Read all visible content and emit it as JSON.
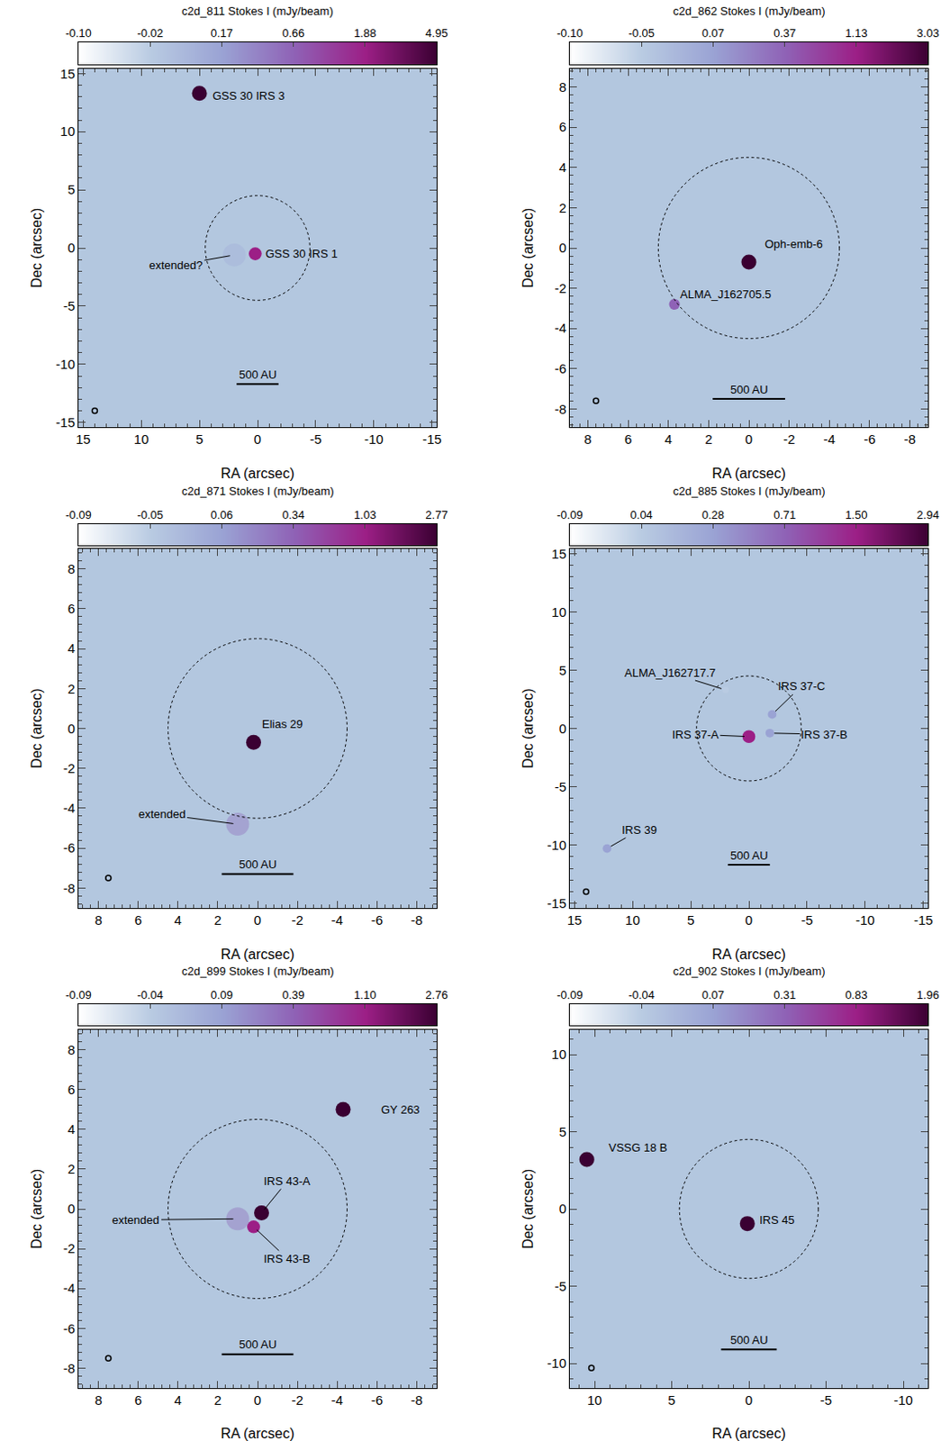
{
  "chart_data": [
    {
      "type": "image",
      "title": "c2d_811 Stokes I (mJy/beam)",
      "x_label": "RA (arcsec)",
      "y_label": "Dec (arcsec)",
      "xlim": [
        15.4,
        -15.4
      ],
      "ylim": [
        -15.4,
        15.4
      ],
      "xticks": [
        15,
        10,
        5,
        0,
        -5,
        -10,
        -15
      ],
      "yticks": [
        -15,
        -10,
        -5,
        0,
        5,
        10,
        15
      ],
      "colorbar_ticks": [
        {
          "value": -0.1,
          "label": "-0.10"
        },
        {
          "value": -0.02,
          "label": "-0.02"
        },
        {
          "value": 0.17,
          "label": "0.17"
        },
        {
          "value": 0.66,
          "label": "0.66"
        },
        {
          "value": 1.88,
          "label": "1.88"
        },
        {
          "value": 4.95,
          "label": "4.95"
        }
      ],
      "sources": [
        {
          "name": "GSS 30 IRS 3",
          "x": 5.0,
          "y": 13.3,
          "peak": 4.95,
          "label_at": [
            4.0,
            13.1
          ]
        },
        {
          "name": "GSS 30 IRS 1",
          "x": 0.2,
          "y": -0.5,
          "peak": 1.88,
          "label_at": [
            -0.5,
            -0.5
          ]
        },
        {
          "name": "extended?",
          "x": 2.0,
          "y": -0.6,
          "peak": 0.1,
          "marker": "diffuse",
          "label_at": [
            7.0,
            -1.5
          ],
          "line_style": "solid"
        }
      ],
      "circle_radius": 4.5,
      "scale_bar": {
        "label": "500 AU",
        "length": 3.6,
        "y": -11.7
      },
      "beam": [
        14,
        -14
      ]
    },
    {
      "type": "image",
      "title": "c2d_862 Stokes I (mJy/beam)",
      "x_label": "RA (arcsec)",
      "y_label": "Dec (arcsec)",
      "xlim": [
        8.9,
        -8.9
      ],
      "ylim": [
        -8.9,
        8.9
      ],
      "xticks": [
        8,
        6,
        4,
        2,
        0,
        -2,
        -4,
        -6,
        -8
      ],
      "yticks": [
        -8,
        -6,
        -4,
        -2,
        0,
        2,
        4,
        6,
        8
      ],
      "colorbar_ticks": [
        {
          "value": -0.1,
          "label": "-0.10"
        },
        {
          "value": -0.05,
          "label": "-0.05"
        },
        {
          "value": 0.07,
          "label": "0.07"
        },
        {
          "value": 0.37,
          "label": "0.37"
        },
        {
          "value": 1.13,
          "label": "1.13"
        },
        {
          "value": 3.03,
          "label": "3.03"
        }
      ],
      "sources": [
        {
          "name": "Oph-emb-6",
          "x": 0.0,
          "y": -0.7,
          "peak": 3.03,
          "label_at": [
            -0.7,
            0.2
          ]
        },
        {
          "name": "ALMA_J162705.5",
          "x": 3.7,
          "y": -2.8,
          "peak": 0.37,
          "label_at": [
            3.5,
            -2.3
          ]
        }
      ],
      "circle_radius": 4.5,
      "scale_bar": {
        "label": "500 AU",
        "length": 3.6,
        "y": -7.5
      },
      "beam": [
        7.6,
        -7.6
      ]
    },
    {
      "type": "image",
      "title": "c2d_871 Stokes I (mJy/beam)",
      "x_label": "RA (arcsec)",
      "y_label": "Dec (arcsec)",
      "xlim": [
        9.0,
        -9.0
      ],
      "ylim": [
        -9.0,
        9.0
      ],
      "xticks": [
        8,
        6,
        4,
        2,
        0,
        -2,
        -4,
        -6,
        -8
      ],
      "yticks": [
        -8,
        -6,
        -4,
        -2,
        0,
        2,
        4,
        6,
        8
      ],
      "colorbar_ticks": [
        {
          "value": -0.09,
          "label": "-0.09"
        },
        {
          "value": -0.05,
          "label": "-0.05"
        },
        {
          "value": 0.06,
          "label": "0.06"
        },
        {
          "value": 0.34,
          "label": "0.34"
        },
        {
          "value": 1.03,
          "label": "1.03"
        },
        {
          "value": 2.77,
          "label": "2.77"
        }
      ],
      "sources": [
        {
          "name": "Elias 29",
          "x": 0.2,
          "y": -0.7,
          "peak": 2.77,
          "label_at": [
            -0.15,
            0.2
          ]
        },
        {
          "name": "extended",
          "x": 1.0,
          "y": -4.8,
          "peak": 0.25,
          "marker": "diffuse",
          "label_at": [
            4.8,
            -4.3
          ],
          "line_style": "solid"
        }
      ],
      "circle_radius": 4.5,
      "scale_bar": {
        "label": "500 AU",
        "length": 3.6,
        "y": -7.3
      },
      "beam": [
        7.5,
        -7.5
      ]
    },
    {
      "type": "image",
      "title": "c2d_885 Stokes I (mJy/beam)",
      "x_label": "RA (arcsec)",
      "y_label": "Dec (arcsec)",
      "xlim": [
        15.4,
        -15.4
      ],
      "ylim": [
        -15.4,
        15.4
      ],
      "xticks": [
        15,
        10,
        5,
        0,
        -5,
        -10,
        -15
      ],
      "yticks": [
        -15,
        -10,
        -5,
        0,
        5,
        10,
        15
      ],
      "colorbar_ticks": [
        {
          "value": -0.09,
          "label": "-0.09"
        },
        {
          "value": 0.04,
          "label": "0.04"
        },
        {
          "value": 0.28,
          "label": "0.28"
        },
        {
          "value": 0.71,
          "label": "0.71"
        },
        {
          "value": 1.5,
          "label": "1.50"
        },
        {
          "value": 2.94,
          "label": "2.94"
        }
      ],
      "sources": [
        {
          "name": "IRS 37-A",
          "x": 0.0,
          "y": -0.7,
          "peak": 1.5,
          "label_at": [
            4.6,
            -0.5
          ],
          "line_style": "solid"
        },
        {
          "name": "IRS 37-B",
          "x": -1.8,
          "y": -0.4,
          "peak": 0.28,
          "label_at": [
            -6.5,
            -0.5
          ],
          "line_style": "solid"
        },
        {
          "name": "IRS 37-C",
          "x": -2.0,
          "y": 1.2,
          "peak": 0.28,
          "label_at": [
            -4.5,
            3.6
          ],
          "line_style": "solid"
        },
        {
          "name": "ALMA_J162717.7",
          "x": 2.0,
          "y": 3.3,
          "peak": 0.04,
          "label_at": [
            6.8,
            4.8
          ],
          "line_style": "solid"
        },
        {
          "name": "IRS 39",
          "x": 12.2,
          "y": -10.3,
          "peak": 0.28,
          "label_at": [
            9.4,
            -8.7
          ],
          "line_style": "solid"
        }
      ],
      "circle_radius": 4.5,
      "scale_bar": {
        "label": "500 AU",
        "length": 3.6,
        "y": -11.7
      },
      "beam": [
        14,
        -14
      ]
    },
    {
      "type": "image",
      "title": "c2d_899 Stokes I (mJy/beam)",
      "x_label": "RA (arcsec)",
      "y_label": "Dec (arcsec)",
      "xlim": [
        9.0,
        -9.0
      ],
      "ylim": [
        -9.0,
        9.0
      ],
      "xticks": [
        8,
        6,
        4,
        2,
        0,
        -2,
        -4,
        -6,
        -8
      ],
      "yticks": [
        -8,
        -6,
        -4,
        -2,
        0,
        2,
        4,
        6,
        8
      ],
      "colorbar_ticks": [
        {
          "value": -0.09,
          "label": "-0.09"
        },
        {
          "value": -0.04,
          "label": "-0.04"
        },
        {
          "value": 0.09,
          "label": "0.09"
        },
        {
          "value": 0.39,
          "label": "0.39"
        },
        {
          "value": 1.1,
          "label": "1.10"
        },
        {
          "value": 2.76,
          "label": "2.76"
        }
      ],
      "sources": [
        {
          "name": "GY 263",
          "x": -4.3,
          "y": 5.0,
          "peak": 2.76,
          "label_at": [
            -6.1,
            5.0
          ]
        },
        {
          "name": "IRS 43-A",
          "x": -0.2,
          "y": -0.2,
          "peak": 2.76,
          "label_at": [
            -1.5,
            1.4
          ],
          "line_style": "solid"
        },
        {
          "name": "IRS 43-B",
          "x": 0.2,
          "y": -0.9,
          "peak": 1.1,
          "label_at": [
            -1.5,
            -2.5
          ],
          "line_style": "solid"
        },
        {
          "name": "extended",
          "x": 1.0,
          "y": -0.5,
          "peak": 0.3,
          "marker": "diffuse",
          "label_at": [
            6.1,
            -0.55
          ],
          "line_style": "solid"
        }
      ],
      "circle_radius": 4.5,
      "scale_bar": {
        "label": "500 AU",
        "length": 3.6,
        "y": -7.3
      },
      "beam": [
        7.5,
        -7.5
      ]
    },
    {
      "type": "image",
      "title": "c2d_902 Stokes I (mJy/beam)",
      "x_label": "RA (arcsec)",
      "y_label": "Dec (arcsec)",
      "xlim": [
        11.6,
        -11.6
      ],
      "ylim": [
        -11.6,
        11.6
      ],
      "xticks": [
        10,
        5,
        0,
        -5,
        -10
      ],
      "yticks": [
        -10,
        -5,
        0,
        5,
        10
      ],
      "colorbar_ticks": [
        {
          "value": -0.09,
          "label": "-0.09"
        },
        {
          "value": -0.04,
          "label": "-0.04"
        },
        {
          "value": 0.07,
          "label": "0.07"
        },
        {
          "value": 0.31,
          "label": "0.31"
        },
        {
          "value": 0.83,
          "label": "0.83"
        },
        {
          "value": 1.96,
          "label": "1.96"
        }
      ],
      "sources": [
        {
          "name": "VSSG 18 B",
          "x": 10.5,
          "y": 3.2,
          "peak": 1.96,
          "label_at": [
            9.2,
            4.0
          ]
        },
        {
          "name": "IRS 45",
          "x": 0.1,
          "y": -0.95,
          "peak": 1.96,
          "label_at": [
            -0.55,
            -0.7
          ]
        }
      ],
      "circle_radius": 4.5,
      "scale_bar": {
        "label": "500 AU",
        "length": 3.6,
        "y": -9.1
      },
      "beam": [
        10.2,
        -10.3
      ]
    }
  ]
}
